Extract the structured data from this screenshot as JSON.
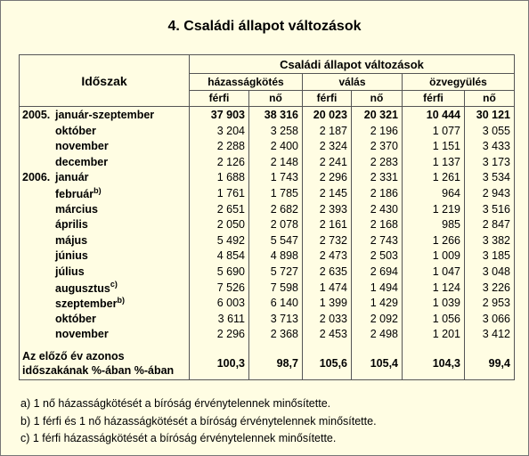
{
  "title": "4. Családi állapot változások",
  "table": {
    "header": {
      "period": "Időszak",
      "group": "Családi állapot változások",
      "subgroups": [
        "házasságkötés",
        "válás",
        "özvegyülés"
      ],
      "sexes": [
        "férfi",
        "nő",
        "férfi",
        "nő",
        "férfi",
        "nő"
      ]
    },
    "rows": [
      {
        "year": "2005.",
        "label": "január-szeptember",
        "values": [
          "37 903",
          "38 316",
          "20 023",
          "20 321",
          "10 444",
          "30 121"
        ]
      },
      {
        "label": "október",
        "values": [
          "3 204",
          "3 258",
          "2 187",
          "2 196",
          "1 077",
          "3 055"
        ]
      },
      {
        "label": "november",
        "values": [
          "2 288",
          "2 400",
          "2 324",
          "2 370",
          "1 151",
          "3 433"
        ]
      },
      {
        "label": "december",
        "values": [
          "2 126",
          "2 148",
          "2 241",
          "2 283",
          "1 137",
          "3 173"
        ]
      },
      {
        "year": "2006.",
        "label": "január",
        "values": [
          "1 688",
          "1 743",
          "2 296",
          "2 331",
          "1 261",
          "3 534"
        ]
      },
      {
        "label": "február",
        "note": "b)",
        "values": [
          "1 761",
          "1 785",
          "2 145",
          "2 186",
          "964",
          "2 943"
        ]
      },
      {
        "label": "március",
        "values": [
          "2 651",
          "2 682",
          "2 393",
          "2 430",
          "1 219",
          "3 516"
        ]
      },
      {
        "label": "április",
        "values": [
          "2 050",
          "2 078",
          "2 161",
          "2 168",
          "985",
          "2 847"
        ]
      },
      {
        "label": "május",
        "values": [
          "5 492",
          "5 547",
          "2 732",
          "2 743",
          "1 266",
          "3 382"
        ]
      },
      {
        "label": "június",
        "values": [
          "4 854",
          "4 898",
          "2 473",
          "2 503",
          "1 009",
          "3 185"
        ]
      },
      {
        "label": "július",
        "values": [
          "5 690",
          "5 727",
          "2 635",
          "2 694",
          "1 047",
          "3 048"
        ]
      },
      {
        "label": "augusztus",
        "note": "c)",
        "values": [
          "7 526",
          "7 598",
          "1 474",
          "1 494",
          "1 124",
          "3 226"
        ]
      },
      {
        "label": "szeptember",
        "note": "b)",
        "values": [
          "6 003",
          "6 140",
          "1 399",
          "1 429",
          "1 039",
          "2 953"
        ]
      },
      {
        "label": "október",
        "values": [
          "3 611",
          "3 713",
          "2 033",
          "2 092",
          "1 056",
          "3 066"
        ]
      },
      {
        "label": "november",
        "values": [
          "2 296",
          "2 368",
          "2 453",
          "2 498",
          "1 201",
          "3 412"
        ]
      }
    ],
    "summary": {
      "label": [
        "Az előző év azonos",
        "időszakának %-ában %-ában"
      ],
      "values": [
        "100,3",
        "98,7",
        "105,6",
        "105,4",
        "104,3",
        "99,4"
      ]
    }
  },
  "footnotes": [
    "a) 1 nő házasságkötését a bíróság érvénytelennek minősítette.",
    "b) 1 férfi és 1 nő házasságkötését a bíróság érvénytelennek minősítette.",
    "c) 1 férfi házasságkötését a bíróság érvénytelennek minősítette."
  ]
}
